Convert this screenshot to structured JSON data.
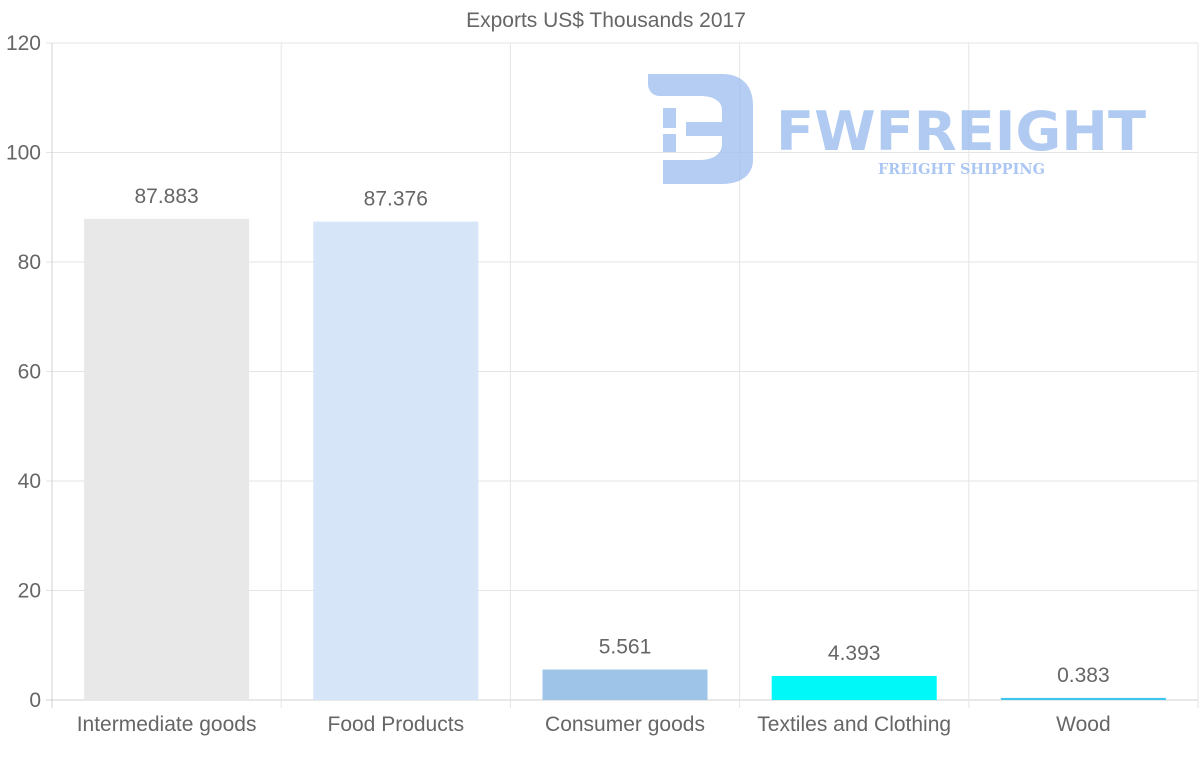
{
  "chart_data": {
    "type": "bar",
    "title": "Exports US$ Thousands 2017",
    "categories": [
      "Intermediate goods",
      "Food Products",
      "Consumer goods",
      "Textiles and Clothing",
      "Wood"
    ],
    "values": [
      87.883,
      87.376,
      5.561,
      4.393,
      0.383
    ],
    "value_labels": [
      "87.883",
      "87.376",
      "5.561",
      "4.393",
      "0.383"
    ],
    "bar_colors": [
      "#e8e8e8",
      "#d6e6f8",
      "#9ec4e8",
      "#00f8f8",
      "#3ec6f0"
    ],
    "ylim": [
      0,
      120
    ],
    "yticks": [
      0,
      20,
      40,
      60,
      80,
      100,
      120
    ],
    "xlabel": "",
    "ylabel": "",
    "grid": true
  },
  "watermark": {
    "brand": "FWFREIGHT",
    "tagline": "FREIGHT SHIPPING",
    "color": "#9dbdf0"
  }
}
